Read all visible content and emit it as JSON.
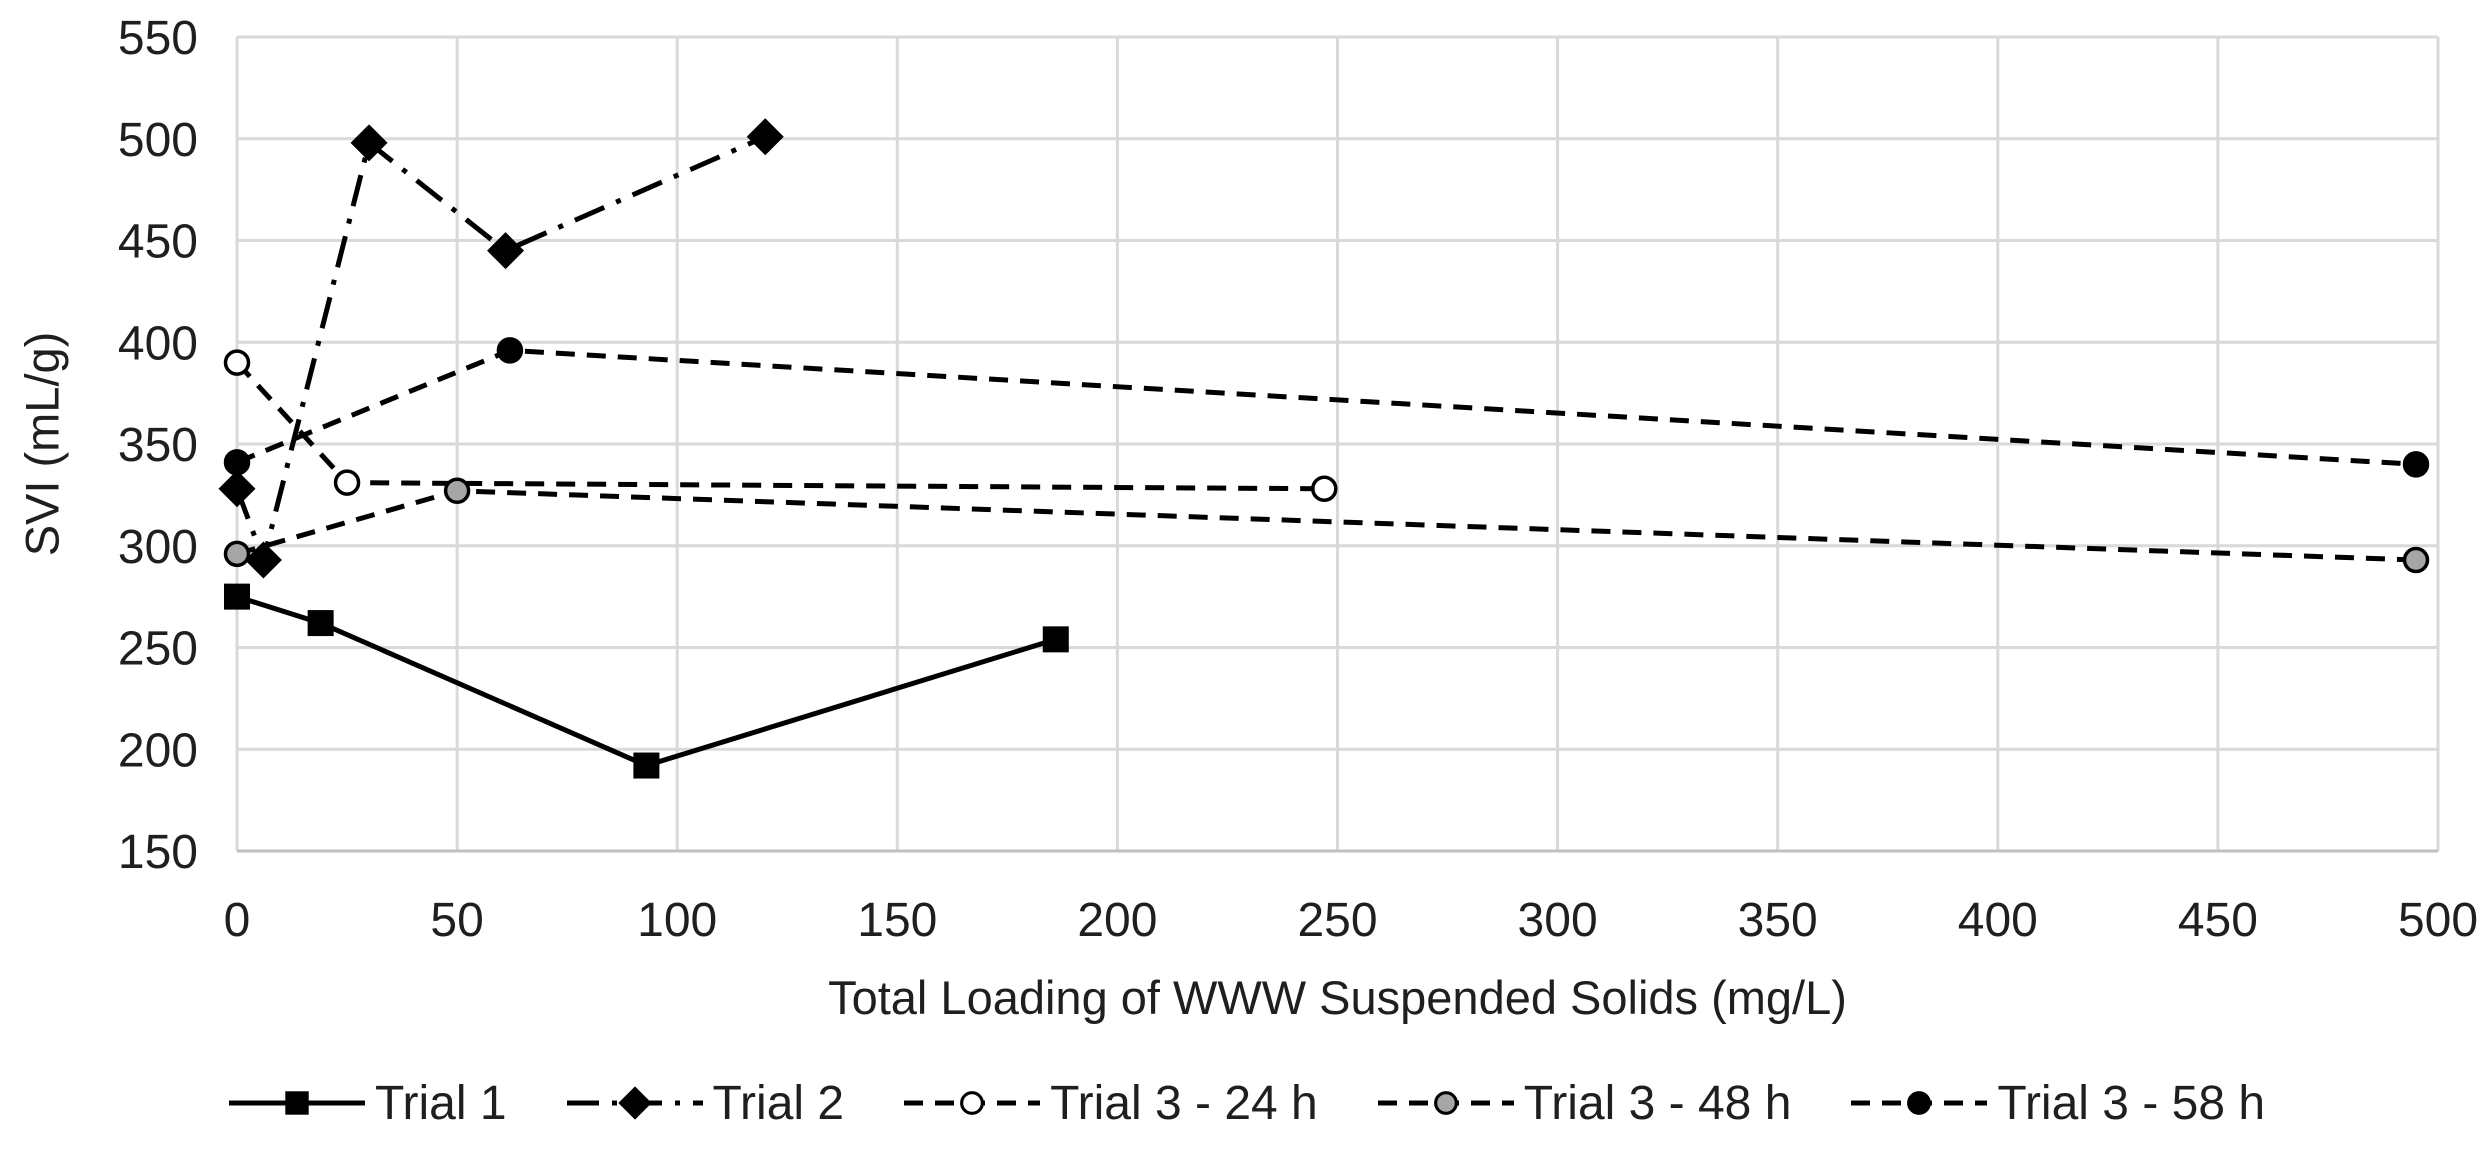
{
  "chart_data": {
    "type": "line",
    "title": "",
    "xlabel": "Total Loading of WWW Suspended Solids (mg/L)",
    "ylabel": "SVI (mL/g)",
    "xlim": [
      0,
      500
    ],
    "ylim": [
      150,
      550
    ],
    "x_ticks": [
      0,
      50,
      100,
      150,
      200,
      250,
      300,
      350,
      400,
      450,
      500
    ],
    "y_ticks": [
      150,
      200,
      250,
      300,
      350,
      400,
      450,
      500,
      550
    ],
    "grid": true,
    "legend_position": "bottom",
    "series": [
      {
        "name": "Trial 1",
        "line": "solid",
        "marker": "square-filled",
        "points": [
          [
            0,
            275
          ],
          [
            19,
            262
          ],
          [
            93,
            192
          ],
          [
            186,
            254
          ]
        ]
      },
      {
        "name": "Trial 2",
        "line": "dash-dot",
        "marker": "diamond-filled",
        "points": [
          [
            0,
            328
          ],
          [
            6,
            293
          ],
          [
            30,
            498
          ],
          [
            61,
            445
          ],
          [
            120,
            501
          ]
        ]
      },
      {
        "name": "Trial 3 - 24 h",
        "line": "dashed",
        "marker": "circle-open",
        "points": [
          [
            0,
            390
          ],
          [
            25,
            331
          ],
          [
            247,
            328
          ]
        ]
      },
      {
        "name": "Trial 3 - 48 h",
        "line": "dashed",
        "marker": "circle-gray",
        "points": [
          [
            0,
            296
          ],
          [
            50,
            327
          ],
          [
            495,
            293
          ]
        ]
      },
      {
        "name": "Trial 3 - 58 h",
        "line": "dashed",
        "marker": "circle-filled",
        "points": [
          [
            0,
            341
          ],
          [
            62,
            396
          ],
          [
            495,
            340
          ]
        ]
      }
    ],
    "colors": {
      "series": "#000000",
      "marker_open_fill": "#ffffff",
      "marker_gray_fill": "#a6a6a6",
      "gridline": "#d9d9d9",
      "axis_line": "#bfbfbf",
      "text": "#1f1f1f"
    }
  }
}
